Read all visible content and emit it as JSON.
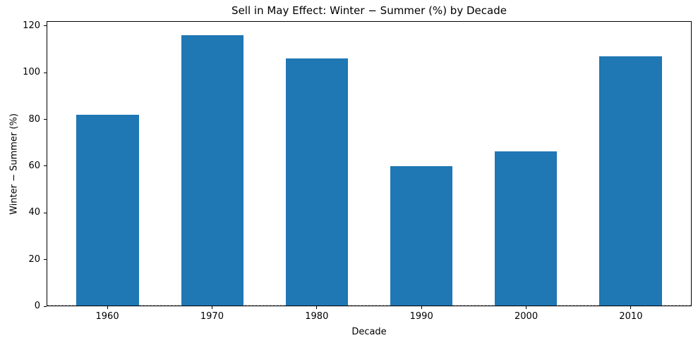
{
  "chart_data": {
    "type": "bar",
    "title": "Sell in May Effect: Winter − Summer (%) by Decade",
    "xlabel": "Decade",
    "ylabel": "Winter − Summer (%)",
    "categories": [
      "1960",
      "1970",
      "1980",
      "1990",
      "2000",
      "2010"
    ],
    "values": [
      82.2,
      116.3,
      106.2,
      60.0,
      66.5,
      107.2
    ],
    "yticks": [
      0,
      20,
      40,
      60,
      80,
      100,
      120
    ],
    "ylim": [
      0,
      122.1
    ],
    "xlim": [
      -0.58,
      5.58
    ],
    "bar_width": 0.6,
    "bar_color": "#1f77b4",
    "axis_color": "#000000",
    "background_color": "#ffffff",
    "zero_line": {
      "y": 0,
      "style": "dashed",
      "color": "#aaaaaa"
    },
    "grid": false,
    "legend": "none"
  }
}
